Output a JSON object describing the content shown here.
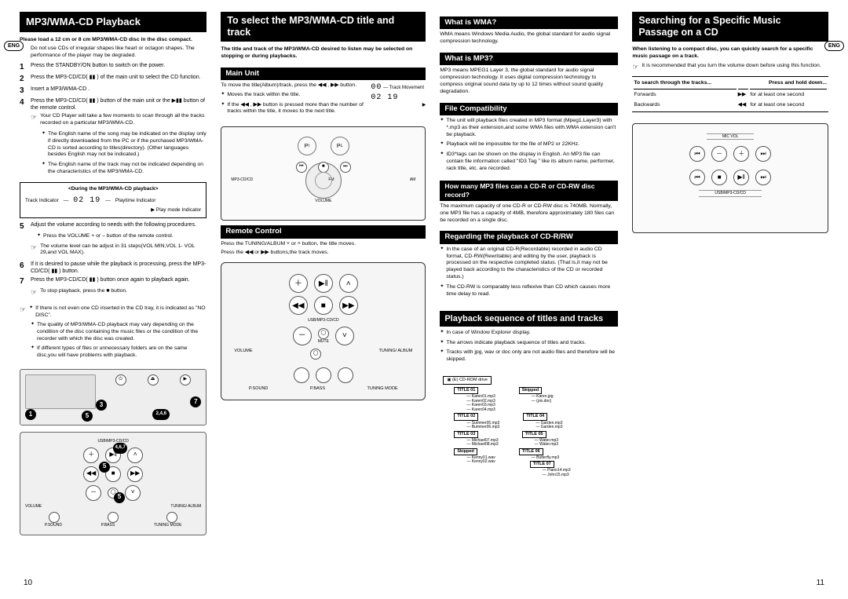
{
  "lang": "ENG",
  "page_left": "10",
  "page_right": "11",
  "col1": {
    "title": "MP3/WMA-CD Playback",
    "intro": "Please load a 12 cm or 8 cm MP3/WMA-CD disc in the disc compact.",
    "intro_note": "Do not use CDs of irregular shapes like heart or octagon shapes. The performance of the player may be degraded.",
    "steps": [
      "Press the STANDBY/ON button to switch on the power.",
      "Press the MP3-CD/CD( ▮▮ ) of the main unit to select the CD function.",
      "Insert a MP3/WMA-CD .",
      "Press the MP3-CD/CD( ▮▮ ) button of the main unit or the ▶▮▮ button of the remote control."
    ],
    "step4_notes": [
      "Your CD Player will take a few moments to scan through all the tracks recorded on a particular MP3/WMA-CD.",
      "The English name of the song may be indicated on the display only if directly downloaded from the PC or if the purchased MP3/WMA-CD is sorted according to titles(directory). (Other languages besides English may not be indicated.)",
      "The English name of the track may not be indicated depending on the characteristics of the MP3/WMA-CD."
    ],
    "display_heading": "<During the MP3/WMA-CD playback>",
    "display_track": "Track Indicator",
    "display_digits": "02  19",
    "display_play_ind": "Playtime Indicator",
    "display_mode_ind": "Play mode Indicator",
    "step5": "Adjust the volume according to needs with the following procedures.",
    "step5_notes": [
      "Press the VOLUME + or – button of the remote control.",
      "The volume level can be adjust in 31 steps(VOL MIN,VOL 1- VOL 29,and VOL MAX)."
    ],
    "step6": "If it is desired to pause while the playback is processing, press the MP3-CD/CD( ▮▮ ) button.",
    "step7": "Press the MP3-CD/CD( ▮▮ ) button once again to playback again.",
    "stop_note": "To stop playback, press the ■ button.",
    "final_notes": [
      "If there is not even one CD inserted in the CD tray, it is indicated as \"NO DISC\".",
      "The quality of MP3/WMA-CD playback may vary depending on the condition of the disc containing the music files or the condition of the recorder with which the disc was created.",
      "If different types of files or unnecessary folders are on the same disc,you will have problems with playback."
    ]
  },
  "col2": {
    "title": "To select the MP3/WMA-CD title and track",
    "intro": "The title and track of the MP3/WMA-CD desired to listen may be selected on stopping or during playbacks.",
    "main_unit_h": "Main Unit",
    "main_unit_body": "To move the title(Album)/track, press the ◀◀ , ▶▶ button.",
    "main_unit_notes": [
      "Moves the track within the title.",
      "If the ◀◀ , ▶▶ button is pressed more than the number of tracks within the title, it moves to the next title."
    ],
    "track_move_label": "Track Movement",
    "digits": "02  19",
    "remote_h": "Remote Control",
    "remote_body1": "Press the TUNING/ALBUM ˅ or ˄ button, the title moves.",
    "remote_body2": "Press the ◀◀ or ▶▶ buttons,the track moves.",
    "labels": {
      "usb": "USB/MP3-CD/CD",
      "mute": "MUTE",
      "volume": "VOLUME",
      "tuning": "TUNING/ ALBUM",
      "psound": "P.SOUND",
      "pbass": "P.BASS",
      "tmode": "TUNING MODE"
    }
  },
  "col3": {
    "wma_h": "What is WMA?",
    "wma_body": "WMA means Windows Media Audio, the global standard for audio signal compression technology.",
    "mp3_h": "What is MP3?",
    "mp3_body": "MP3 means MPEG1 Layer 3, the global standard for audio signal compression technology. It uses digital compression technology to compress original sound data by up to 12 times without sound quality degradation.",
    "fc_h": "File Compatibility",
    "fc_notes": [
      "The unit will playback files created in MP3 format (Mpeg1.Layer3) with *.mp3 as their extension,and some WMA files with.WMA extension can't be playback.",
      "Playback will be impossible for the file of MP2 or 22KHz.",
      "ID3*tags can be shown on the display in English. An MP3 file can contain file information called \"ID3 Tag \" like its album name, performer, rack title, etc. are recorded."
    ],
    "howmany_h": "How many MP3 files can a CD-R or CD-RW disc record?",
    "howmany_body": "The maximum capacity of one CD-R or CD-RW disc is 740MB. Normally, one MP3 file has a capacity of 4MB, therefore approximately 180 files can be recorded on a single disc.",
    "regard_h": "Regarding the playback of CD-R/RW",
    "regard_notes": [
      "In the case of an original CD-R(Recordable) recorded in audio CD format, CD-RW(Rewritable) and editing by the user, playback is processed on the respective completed status. (That is,it may not be played back according to the characteristics of the CD or recorded status.)",
      "The CD-RW is comparably less reflexive than CD which causes more time delay to read."
    ],
    "seq_h": "Playback sequence of titles and tracks",
    "seq_notes": [
      "In case of Window Explorer display.",
      "The arrows indicate playback sequence of titles and tracks.",
      "Tracks with jpg, wav or doc only are not audio files and therefore will be skipped."
    ],
    "tree": {
      "root": "(E) CD-ROM drive",
      "titles": [
        {
          "name": "TITLE 01",
          "files": [
            "Karen01.mp3",
            "Karen02.mp3",
            "Karen03.mp3",
            "Karen04.mp3"
          ],
          "side": {
            "name": "Skipped",
            "files": [
              "Karen.jpg",
              "(pix.doc)"
            ]
          }
        },
        {
          "name": "TITLE 02",
          "files": [
            "Summer05.mp3",
            "Bummer06.mp3"
          ],
          "side": {
            "name": "TITLE 04",
            "files": [
              "Garden.mp3",
              "Garden.mp3"
            ]
          }
        },
        {
          "name": "TITLE 03",
          "files": [
            "Michael07.mp3",
            "Michael08.mp3"
          ],
          "side": {
            "name": "TITLE 05",
            "files": [
              "Water.mp3",
              "Water.mp3"
            ]
          }
        },
        {
          "name": "Skipped",
          "files": [
            "Kenny01.wav",
            "Kenny02.wav"
          ],
          "side": {
            "name": "TITLE 06",
            "files": [
              "Butterfly.mp3"
            ],
            "side2": {
              "name": "TITLE 07",
              "files": [
                "Piano14.mp3",
                "John15.mp3"
              ]
            }
          }
        }
      ]
    }
  },
  "col4": {
    "title": "Searching for a Specific Music Passage on a CD",
    "intro": "When listening to a compact disc, you can quickly search for a specific music passage on a track.",
    "rec_note": "It is recommended that you turn the volume down before using this function.",
    "search_h1": "To search through the tracks...",
    "search_h2": "Press and hold down...",
    "rows": [
      [
        "Forwards",
        "▶▶",
        "for at least one second"
      ],
      [
        "Backwards",
        "◀◀",
        "for at least one second"
      ]
    ],
    "labels": {
      "micvol": "MIC VOL",
      "usb": "USB/MP3-CD/CD"
    }
  }
}
